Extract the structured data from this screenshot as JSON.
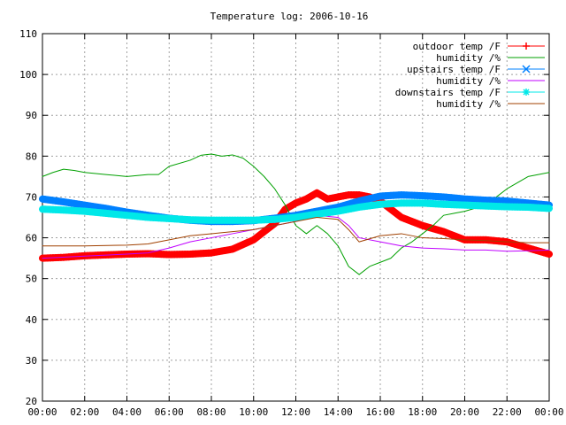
{
  "chart_data": {
    "type": "line",
    "title": "Temperature log: 2006-10-16",
    "xlabel": "",
    "ylabel": "",
    "xlim": [
      0,
      24
    ],
    "ylim": [
      20,
      110
    ],
    "grid": true,
    "legend_position": "top-right",
    "x_ticks": [
      "00:00",
      "02:00",
      "04:00",
      "06:00",
      "08:00",
      "10:00",
      "12:00",
      "14:00",
      "16:00",
      "18:00",
      "20:00",
      "22:00",
      "00:00"
    ],
    "y_ticks": [
      "20",
      "30",
      "40",
      "50",
      "60",
      "70",
      "80",
      "90",
      "100",
      "110"
    ],
    "series": [
      {
        "name": "outdoor temp /F",
        "color": "#ff0000",
        "marker": "plus",
        "stroke_weight": "heavy",
        "points": [
          [
            0,
            55
          ],
          [
            1,
            55.2
          ],
          [
            2,
            55.6
          ],
          [
            3,
            55.8
          ],
          [
            4,
            56
          ],
          [
            5,
            56.1
          ],
          [
            6,
            55.9
          ],
          [
            7,
            56
          ],
          [
            8,
            56.3
          ],
          [
            9,
            57.2
          ],
          [
            10,
            59.5
          ],
          [
            10.5,
            61.5
          ],
          [
            11,
            63.5
          ],
          [
            11.5,
            67
          ],
          [
            12,
            68.5
          ],
          [
            12.5,
            69.5
          ],
          [
            13,
            71
          ],
          [
            13.5,
            69.5
          ],
          [
            14,
            70
          ],
          [
            14.5,
            70.5
          ],
          [
            15,
            70.5
          ],
          [
            15.5,
            70
          ],
          [
            16,
            69
          ],
          [
            16.5,
            67
          ],
          [
            17,
            65
          ],
          [
            17.5,
            64
          ],
          [
            18,
            63
          ],
          [
            19,
            61.5
          ],
          [
            20,
            59.5
          ],
          [
            21,
            59.5
          ],
          [
            22,
            59
          ],
          [
            23,
            57.5
          ],
          [
            24,
            56
          ]
        ]
      },
      {
        "name": "humidity /%",
        "color": "#00a000",
        "marker": "none",
        "stroke_weight": "thin",
        "points": [
          [
            0,
            75
          ],
          [
            0.5,
            76
          ],
          [
            1,
            76.8
          ],
          [
            1.5,
            76.5
          ],
          [
            2,
            76
          ],
          [
            3,
            75.5
          ],
          [
            4,
            75
          ],
          [
            5,
            75.5
          ],
          [
            5.5,
            75.5
          ],
          [
            6,
            77.5
          ],
          [
            7,
            79
          ],
          [
            7.5,
            80.2
          ],
          [
            8,
            80.5
          ],
          [
            8.5,
            80
          ],
          [
            9,
            80.3
          ],
          [
            9.5,
            79.5
          ],
          [
            10,
            77.5
          ],
          [
            10.5,
            75
          ],
          [
            11,
            72
          ],
          [
            11.5,
            68
          ],
          [
            12,
            63
          ],
          [
            12.5,
            61
          ],
          [
            13,
            63
          ],
          [
            13.5,
            61
          ],
          [
            14,
            58
          ],
          [
            14.5,
            53
          ],
          [
            15,
            51
          ],
          [
            15.5,
            53
          ],
          [
            16,
            54
          ],
          [
            16.5,
            55
          ],
          [
            17,
            57.5
          ],
          [
            17.5,
            59
          ],
          [
            18,
            61
          ],
          [
            18.5,
            63
          ],
          [
            19,
            65.5
          ],
          [
            19.5,
            66
          ],
          [
            20,
            66.5
          ],
          [
            21,
            68
          ],
          [
            21.5,
            70
          ],
          [
            22,
            72
          ],
          [
            23,
            75
          ],
          [
            24,
            76
          ]
        ]
      },
      {
        "name": "upstairs temp /F",
        "color": "#0080ff",
        "marker": "cross",
        "stroke_weight": "heavy",
        "points": [
          [
            0,
            69.5
          ],
          [
            1,
            68.8
          ],
          [
            2,
            68
          ],
          [
            3,
            67.2
          ],
          [
            4,
            66.3
          ],
          [
            5,
            65.5
          ],
          [
            6,
            64.8
          ],
          [
            7,
            64.3
          ],
          [
            8,
            64
          ],
          [
            9,
            64
          ],
          [
            10,
            64.2
          ],
          [
            11,
            64.8
          ],
          [
            12,
            65.5
          ],
          [
            13,
            66.5
          ],
          [
            14,
            67.5
          ],
          [
            15,
            69
          ],
          [
            16,
            70.2
          ],
          [
            17,
            70.5
          ],
          [
            18,
            70.3
          ],
          [
            19,
            70
          ],
          [
            20,
            69.5
          ],
          [
            21,
            69.2
          ],
          [
            22,
            69
          ],
          [
            23,
            68.5
          ],
          [
            24,
            68
          ]
        ]
      },
      {
        "name": "humidity /%",
        "color": "#c000ff",
        "marker": "none",
        "stroke_weight": "thin",
        "points": [
          [
            0,
            55
          ],
          [
            2,
            55.5
          ],
          [
            4,
            56
          ],
          [
            5,
            56.3
          ],
          [
            6,
            57.5
          ],
          [
            7,
            59
          ],
          [
            8,
            60
          ],
          [
            9,
            61
          ],
          [
            10,
            62
          ],
          [
            11,
            63
          ],
          [
            12,
            64
          ],
          [
            13,
            65.5
          ],
          [
            14,
            65
          ],
          [
            14.5,
            63
          ],
          [
            15,
            60
          ],
          [
            16,
            59
          ],
          [
            17,
            58
          ],
          [
            18,
            57.5
          ],
          [
            19,
            57.3
          ],
          [
            20,
            57
          ],
          [
            21,
            57
          ],
          [
            22,
            56.7
          ],
          [
            23,
            56.8
          ],
          [
            24,
            57
          ]
        ]
      },
      {
        "name": "downstairs temp /F",
        "color": "#00e8e8",
        "marker": "star",
        "stroke_weight": "heavy",
        "points": [
          [
            0,
            67
          ],
          [
            1,
            66.8
          ],
          [
            2,
            66.5
          ],
          [
            3,
            66
          ],
          [
            4,
            65.5
          ],
          [
            5,
            65
          ],
          [
            6,
            64.7
          ],
          [
            7,
            64.4
          ],
          [
            8,
            64.3
          ],
          [
            9,
            64.3
          ],
          [
            10,
            64.3
          ],
          [
            11,
            64.5
          ],
          [
            12,
            65
          ],
          [
            13,
            65.8
          ],
          [
            14,
            66.5
          ],
          [
            15,
            67.5
          ],
          [
            16,
            68.2
          ],
          [
            17,
            68.5
          ],
          [
            18,
            68.5
          ],
          [
            19,
            68.2
          ],
          [
            20,
            68
          ],
          [
            21,
            67.8
          ],
          [
            22,
            67.6
          ],
          [
            23,
            67.5
          ],
          [
            24,
            67.2
          ]
        ]
      },
      {
        "name": "humidity /%",
        "color": "#a04000",
        "marker": "none",
        "stroke_weight": "thin",
        "points": [
          [
            0,
            58
          ],
          [
            2,
            58
          ],
          [
            4,
            58.2
          ],
          [
            5,
            58.5
          ],
          [
            6,
            59.5
          ],
          [
            7,
            60.5
          ],
          [
            8,
            61
          ],
          [
            9,
            61.5
          ],
          [
            10,
            62
          ],
          [
            11,
            63
          ],
          [
            12,
            64
          ],
          [
            13,
            65
          ],
          [
            14,
            64.5
          ],
          [
            14.5,
            62
          ],
          [
            15,
            59
          ],
          [
            16,
            60.5
          ],
          [
            17,
            61
          ],
          [
            18,
            60
          ],
          [
            19,
            59.8
          ],
          [
            20,
            59.5
          ],
          [
            21,
            59.3
          ],
          [
            22,
            59
          ],
          [
            23,
            58.8
          ],
          [
            24,
            58.8
          ]
        ]
      }
    ]
  }
}
